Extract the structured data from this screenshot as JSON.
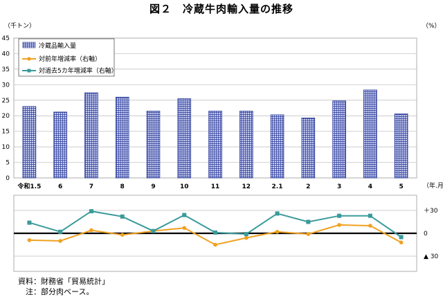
{
  "title": "図２　冷蔵牛肉輸入量の推移",
  "left_unit": "（千トン）",
  "right_unit": "（%）",
  "xaxis_unit": "（年.月）",
  "notes": {
    "source": "資料：財務省「貿易統計」",
    "note": "　注：部分肉ベース。"
  },
  "colors": {
    "bar_fill": "#c7cdee",
    "bar_grid": "#2a3a9a",
    "series2": "#f0a020",
    "series3": "#3a9a9a"
  },
  "chart_data": [
    {
      "type": "bar",
      "categories": [
        "令和1.5",
        "6",
        "7",
        "8",
        "9",
        "10",
        "11",
        "12",
        "2.1",
        "2",
        "3",
        "4",
        "5"
      ],
      "series": [
        {
          "name": "冷蔵品輸入量",
          "values": [
            23.0,
            21.2,
            27.4,
            26.0,
            21.5,
            25.5,
            21.5,
            21.5,
            20.3,
            19.3,
            24.8,
            28.3,
            20.6
          ]
        }
      ],
      "ylabel": "（千トン）",
      "ylim": [
        0,
        45
      ],
      "yticks": [
        0,
        5,
        10,
        15,
        20,
        25,
        30,
        35,
        40,
        45
      ],
      "grid": true,
      "legend_position": "top-left"
    },
    {
      "type": "line",
      "categories": [
        "令和1.5",
        "6",
        "7",
        "8",
        "9",
        "10",
        "11",
        "12",
        "2.1",
        "2",
        "3",
        "4",
        "5"
      ],
      "series": [
        {
          "name": "対前年増減率（右軸）",
          "values": [
            -9,
            -10,
            4,
            -2,
            3,
            7,
            -15,
            -6,
            2,
            -1,
            11,
            10,
            -12
          ]
        },
        {
          "name": "対過去5カ年増減率（右軸）",
          "values": [
            14,
            2,
            29,
            22,
            3,
            24,
            1,
            -1,
            26,
            15,
            23,
            23,
            -5
          ]
        }
      ],
      "ylabel": "（%）",
      "ylim": [
        -50,
        50
      ],
      "ytick_labels": [
        "＋30",
        "0",
        "▲ 30"
      ],
      "ytick_values": [
        30,
        0,
        -30
      ]
    }
  ]
}
